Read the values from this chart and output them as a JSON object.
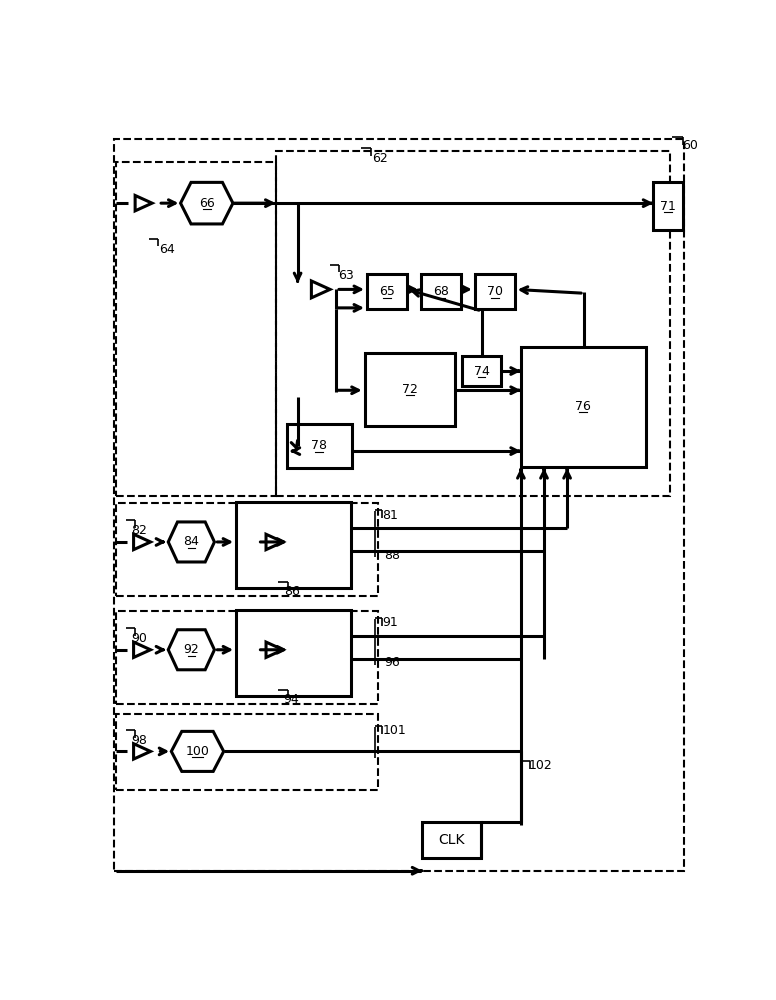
{
  "fig_width": 7.76,
  "fig_height": 10.0,
  "bg_color": "#ffffff",
  "line_color": "#000000",
  "lw_thin": 1.2,
  "lw_thick": 2.2,
  "lw_dash": 1.5
}
